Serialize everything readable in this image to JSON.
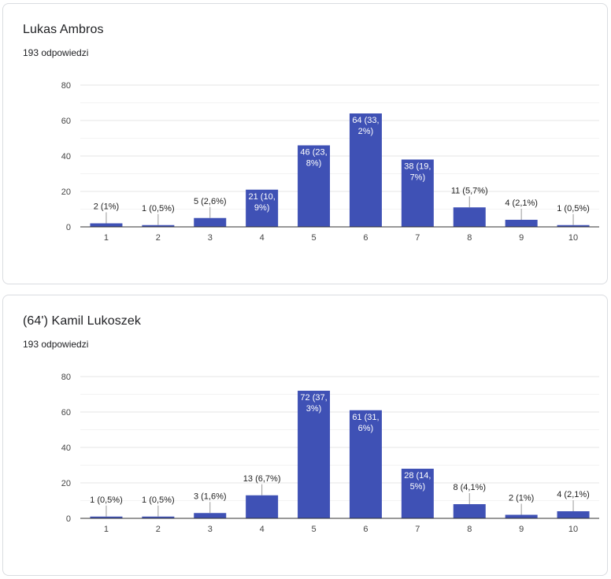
{
  "questions": [
    {
      "title": "Lukas Ambros",
      "responses": "193 odpowiedzi",
      "chart_data": {
        "type": "bar",
        "categories": [
          "1",
          "2",
          "3",
          "4",
          "5",
          "6",
          "7",
          "8",
          "9",
          "10"
        ],
        "values": [
          2,
          1,
          5,
          21,
          46,
          64,
          38,
          11,
          4,
          1
        ],
        "data_labels": [
          "2 (1%)",
          "1 (0,5%)",
          "5 (2,6%)",
          "21 (10,\n9%)",
          "46 (23,\n8%)",
          "64 (33,\n2%)",
          "38 (19,\n7%)",
          "11 (5,7%)",
          "4 (2,1%)",
          "1 (0,5%)"
        ],
        "y_ticks": [
          "0",
          "20",
          "40",
          "60",
          "80"
        ],
        "ylim": [
          0,
          80
        ],
        "grid": true,
        "bar_color": "#3f51b5"
      }
    },
    {
      "title": "(64') Kamil Lukoszek",
      "responses": "193 odpowiedzi",
      "chart_data": {
        "type": "bar",
        "categories": [
          "1",
          "2",
          "3",
          "4",
          "5",
          "6",
          "7",
          "8",
          "9",
          "10"
        ],
        "values": [
          1,
          1,
          3,
          13,
          72,
          61,
          28,
          8,
          2,
          4
        ],
        "data_labels": [
          "1 (0,5%)",
          "1 (0,5%)",
          "3 (1,6%)",
          "13 (6,7%)",
          "72 (37,\n3%)",
          "61 (31,\n6%)",
          "28 (14,\n5%)",
          "8 (4,1%)",
          "2 (1%)",
          "4 (2,1%)"
        ],
        "y_ticks": [
          "0",
          "20",
          "40",
          "60",
          "80"
        ],
        "ylim": [
          0,
          80
        ],
        "grid": true,
        "bar_color": "#3f51b5"
      }
    }
  ]
}
